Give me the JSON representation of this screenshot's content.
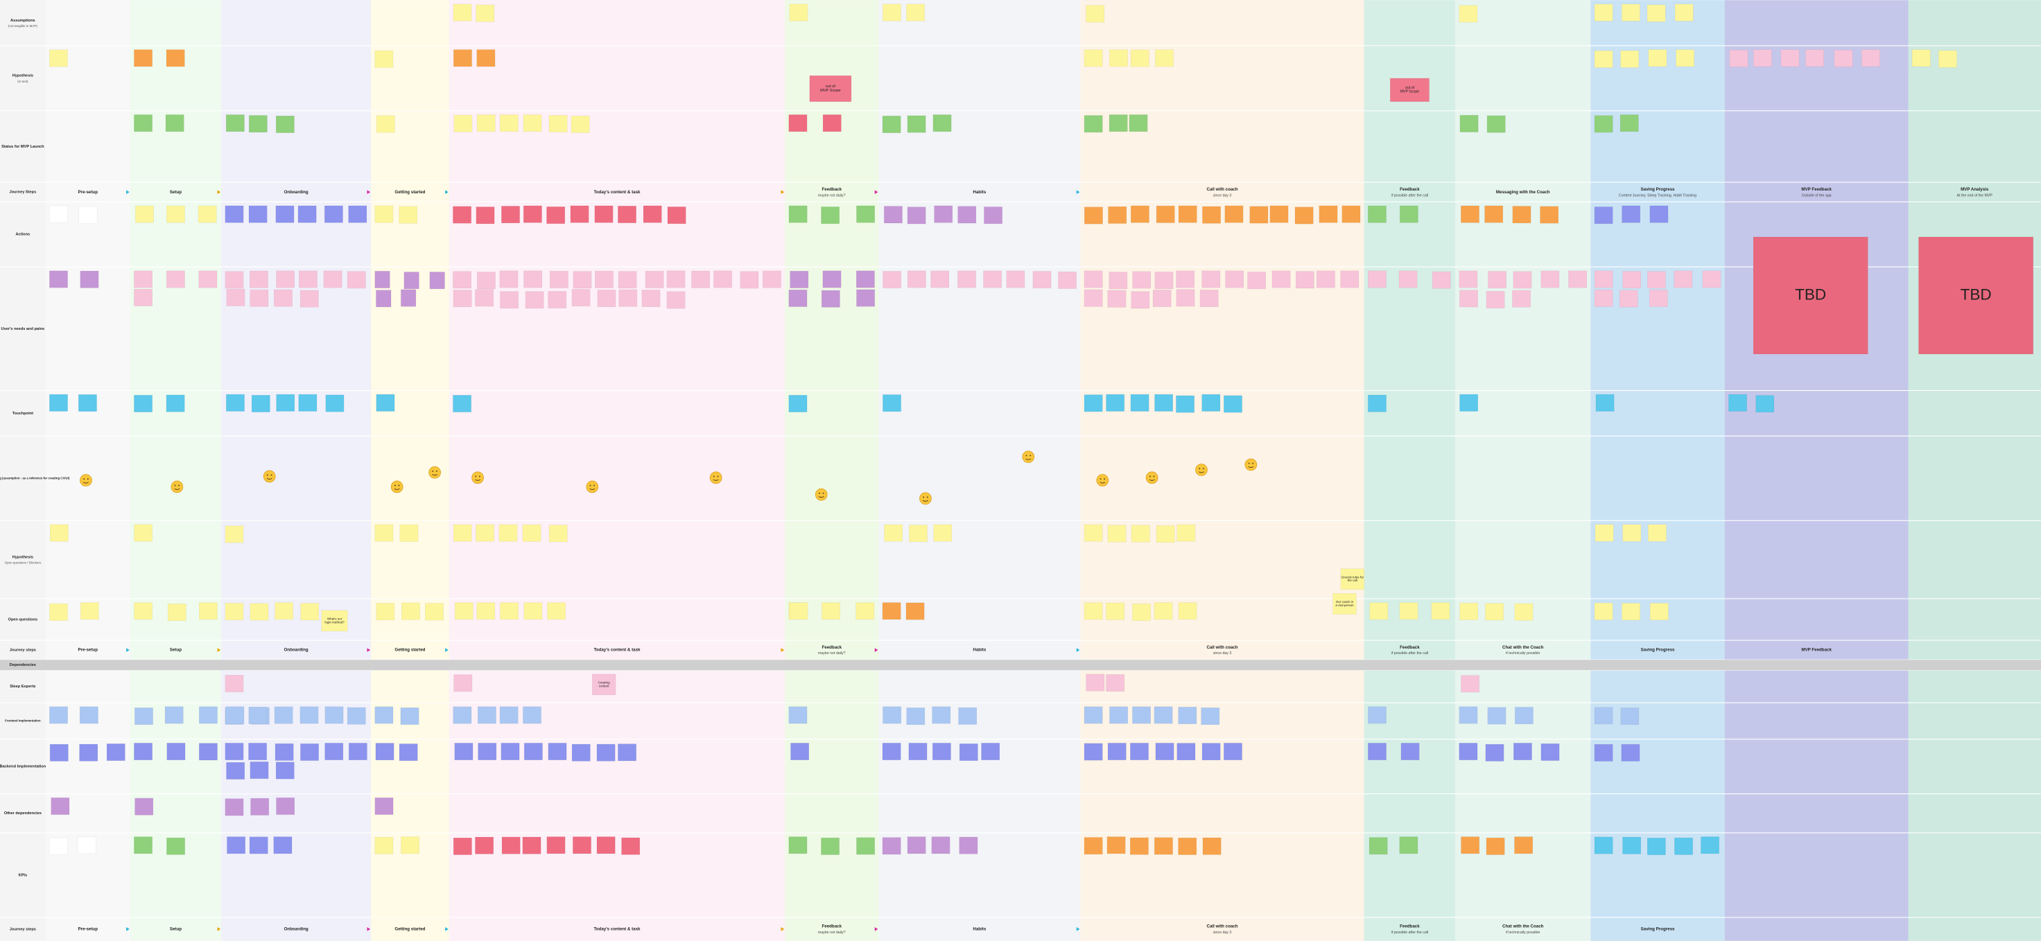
{
  "rows": [
    {
      "label": "Assumptions",
      "sublabel": "(not tangible in MVP)"
    },
    {
      "label": "Hypothesis",
      "sublabel": "(to test)"
    },
    {
      "label": "Status for MVP Launch"
    },
    {
      "label": "Journey Steps"
    },
    {
      "label": "Actions"
    },
    {
      "label": "User's needs and pains"
    },
    {
      "label": "Touchpoint"
    },
    {
      "label": "Customer Feeling (assumption - as a reference for creating CX/UI)"
    },
    {
      "label": "Hypothesis",
      "sublabel": "Open questions / Blockers"
    },
    {
      "label": "Open questions"
    },
    {
      "label": "Journey steps"
    },
    {
      "label": "Dependencies"
    },
    {
      "label": "Sleep Experts"
    },
    {
      "label": "Frontend Implementation"
    },
    {
      "label": "Backend Implementation"
    },
    {
      "label": "Other dependencies"
    },
    {
      "label": "KPIs"
    },
    {
      "label": "Journey steps"
    }
  ],
  "journey_top": [
    {
      "title": "Pre-setup"
    },
    {
      "title": "Setup"
    },
    {
      "title": "Onboarding"
    },
    {
      "title": "Getting started"
    },
    {
      "title": "Today's content & task"
    },
    {
      "title": "Feedback",
      "subtitle": "maybe not daily?"
    },
    {
      "title": "Habits"
    },
    {
      "title": "Call with coach",
      "subtitle": "since day 3"
    },
    {
      "title": "Feedback",
      "subtitle": "if possible after the call"
    },
    {
      "title": "Messaging with the Coach"
    },
    {
      "title": "Saving Progress",
      "subtitle": "Content Journey, Sleep Tracking, Habit Tracking"
    },
    {
      "title": "MVP Feedback",
      "subtitle": "Outside of the app"
    },
    {
      "title": "MVP Analysis",
      "subtitle": "At the end of the MVP"
    }
  ],
  "journey_middle": [
    {
      "title": "Pre-setup"
    },
    {
      "title": "Setup"
    },
    {
      "title": "Onboarding"
    },
    {
      "title": "Getting started"
    },
    {
      "title": "Today's content & task"
    },
    {
      "title": "Feedback",
      "subtitle": "maybe not daily?"
    },
    {
      "title": "Habits"
    },
    {
      "title": "Call with coach",
      "subtitle": "since day 3"
    },
    {
      "title": "Feedback",
      "subtitle": "if possible after the call"
    },
    {
      "title": "Chat with the Coach",
      "subtitle": "if technically possible"
    },
    {
      "title": "Saving Progress"
    },
    {
      "title": "MVP Feedback"
    }
  ],
  "journey_bottom": [
    {
      "title": "Pre-setup"
    },
    {
      "title": "Setup"
    },
    {
      "title": "Onboarding"
    },
    {
      "title": "Getting started"
    },
    {
      "title": "Today's content & task"
    },
    {
      "title": "Feedback",
      "subtitle": "maybe not daily?"
    },
    {
      "title": "Habits"
    },
    {
      "title": "Call with coach",
      "subtitle": "since day 3"
    },
    {
      "title": "Feedback",
      "subtitle": "if possible after the call"
    },
    {
      "title": "Chat with the Coach",
      "subtitle": "if technically possible"
    },
    {
      "title": "Saving Progress"
    }
  ],
  "notes": {
    "scope_1": "out of MVP Scope",
    "scope_2": "out of MVP Scope",
    "tbd_1": "TBD",
    "tbd_2": "TBD",
    "login": "What's our login method?",
    "ground_rules": "Ground rules for the call",
    "coach_person": "Our coach is a real person",
    "content": "Creating content"
  }
}
